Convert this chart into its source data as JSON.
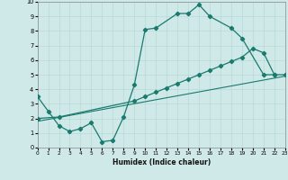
{
  "xlabel": "Humidex (Indice chaleur)",
  "bg_color": "#cee9e8",
  "grid_color": "#b8d8d6",
  "line_color": "#1a7a6e",
  "xlim": [
    0,
    23
  ],
  "ylim": [
    0,
    10
  ],
  "xticks": [
    0,
    1,
    2,
    3,
    4,
    5,
    6,
    7,
    8,
    9,
    10,
    11,
    12,
    13,
    14,
    15,
    16,
    17,
    18,
    19,
    20,
    21,
    22,
    23
  ],
  "yticks": [
    0,
    1,
    2,
    3,
    4,
    5,
    6,
    7,
    8,
    9,
    10
  ],
  "series1_x": [
    0,
    1,
    2,
    3,
    4,
    5,
    6,
    7,
    8,
    9,
    10,
    11,
    13,
    14,
    15,
    16,
    18,
    19,
    21,
    22
  ],
  "series1_y": [
    3.5,
    2.5,
    1.5,
    1.1,
    1.3,
    1.7,
    0.4,
    0.5,
    2.1,
    4.3,
    8.1,
    8.2,
    9.2,
    9.2,
    9.8,
    9.0,
    8.2,
    7.5,
    5.0,
    5.0
  ],
  "series2_x": [
    0,
    2,
    9,
    10,
    11,
    12,
    13,
    14,
    15,
    16,
    17,
    18,
    19,
    20,
    21,
    22,
    23
  ],
  "series2_y": [
    2.0,
    2.1,
    3.2,
    3.5,
    3.8,
    4.1,
    4.4,
    4.7,
    5.0,
    5.3,
    5.6,
    5.9,
    6.2,
    6.8,
    6.5,
    5.0,
    5.0
  ],
  "series3_x": [
    0,
    23
  ],
  "series3_y": [
    1.8,
    4.9
  ]
}
